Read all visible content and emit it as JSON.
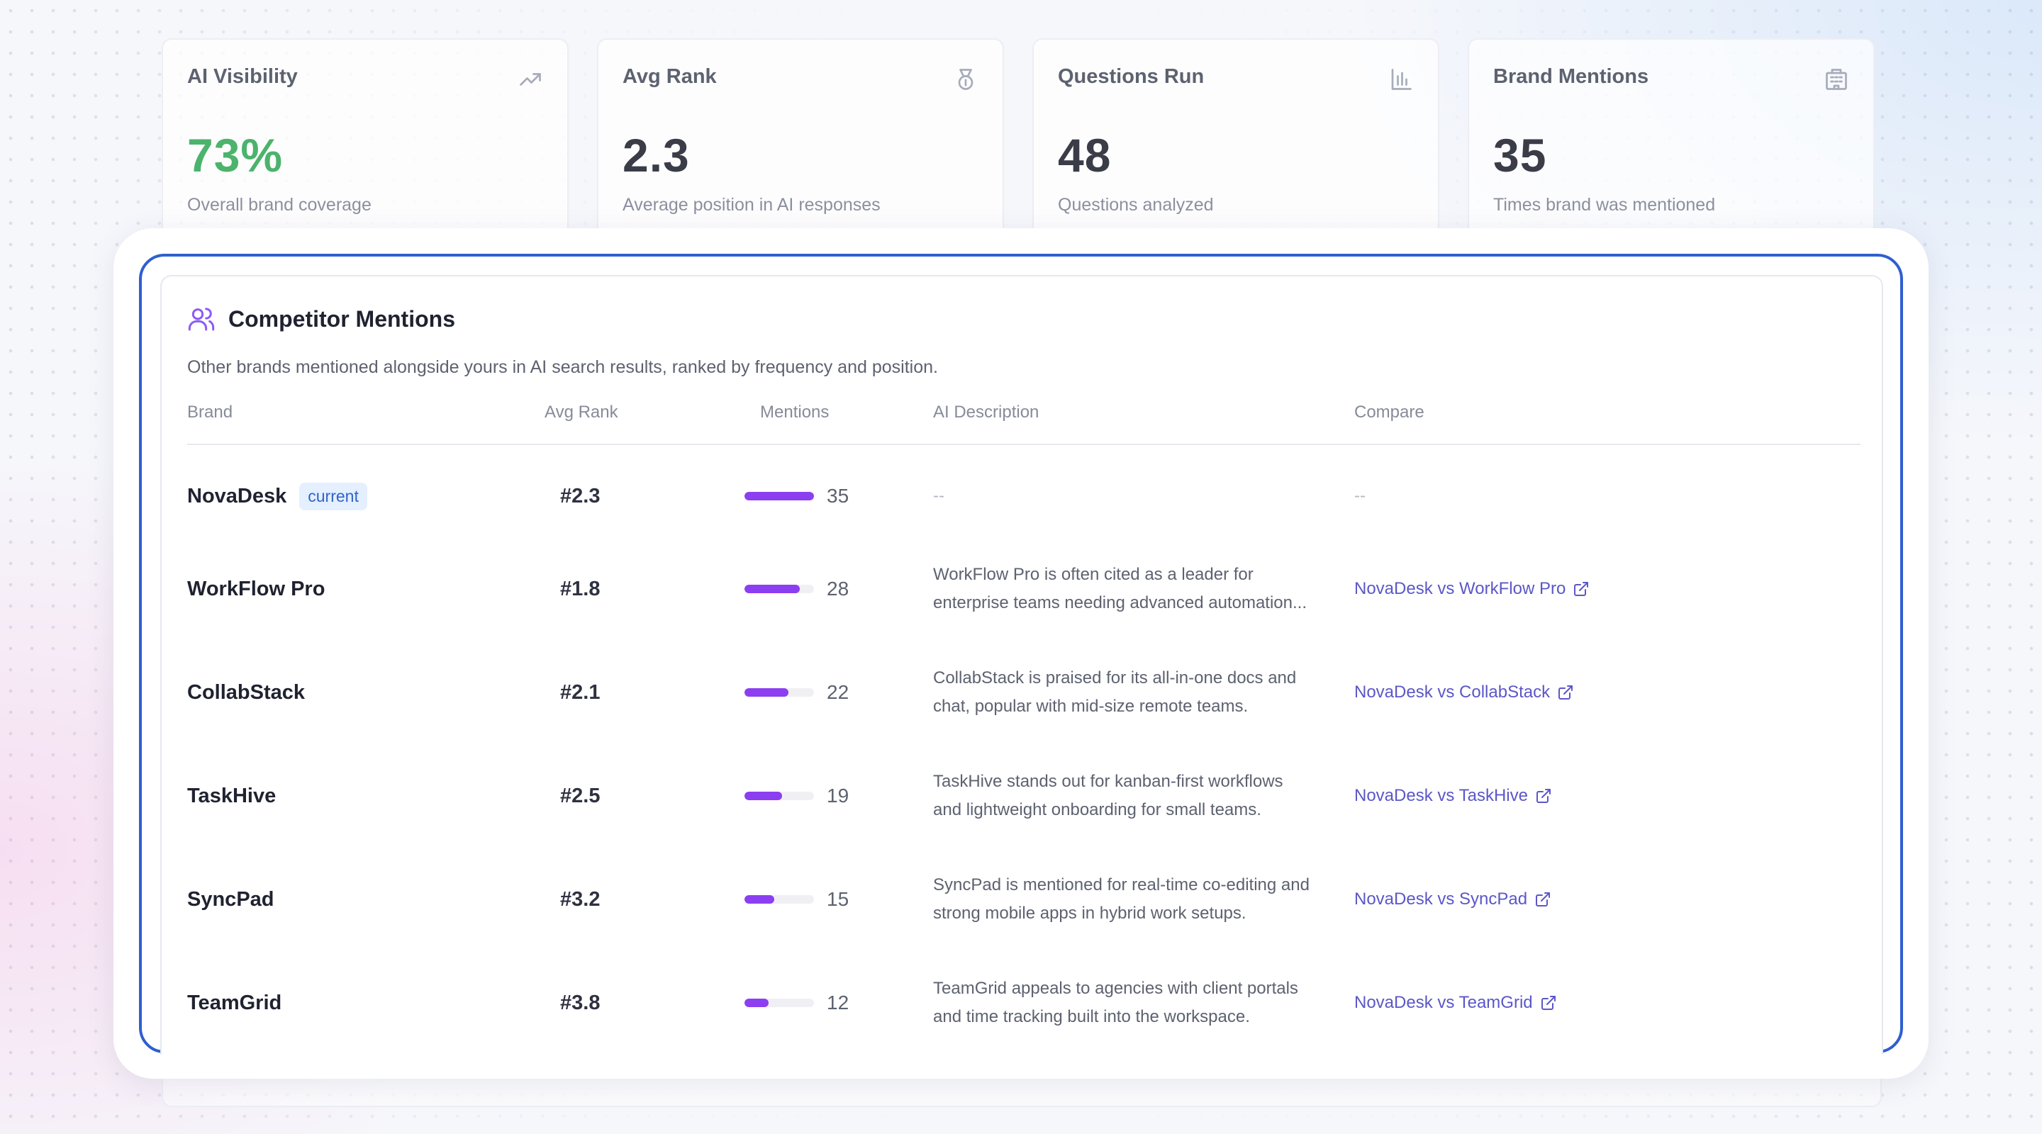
{
  "stats": [
    {
      "title": "AI Visibility",
      "value": "73%",
      "subtitle": "Overall brand coverage",
      "icon": "trending-up-icon",
      "accent_color": "#4cb36c"
    },
    {
      "title": "Avg Rank",
      "value": "2.3",
      "subtitle": "Average position in AI responses",
      "icon": "medal-icon"
    },
    {
      "title": "Questions Run",
      "value": "48",
      "subtitle": "Questions analyzed",
      "icon": "bar-chart-icon"
    },
    {
      "title": "Brand Mentions",
      "value": "35",
      "subtitle": "Times brand was mentioned",
      "icon": "building-icon"
    }
  ],
  "competitors": {
    "title": "Competitor Mentions",
    "icon": "users-icon",
    "description": "Other brands mentioned alongside yours in AI search results, ranked by frequency and position.",
    "columns": {
      "brand": "Brand",
      "avg_rank": "Avg Rank",
      "mentions": "Mentions",
      "ai_description": "AI Description",
      "compare": "Compare"
    },
    "current_badge": "current",
    "bar_color": "#8b3ff0",
    "link_color": "#5b57c8",
    "rows": [
      {
        "brand": "NovaDesk",
        "current": true,
        "rank": "#2.3",
        "mentions": "35",
        "mentions_value": 35,
        "desc_line1": "--",
        "desc_line2": "",
        "compare": "--"
      },
      {
        "brand": "WorkFlow Pro",
        "current": false,
        "rank": "#1.8",
        "mentions": "28",
        "mentions_value": 28,
        "desc_line1": "WorkFlow Pro is often cited as a leader for",
        "desc_line2": "enterprise teams needing advanced automation...",
        "compare": "NovaDesk vs WorkFlow Pro"
      },
      {
        "brand": "CollabStack",
        "current": false,
        "rank": "#2.1",
        "mentions": "22",
        "mentions_value": 22,
        "desc_line1": "CollabStack is praised for its all-in-one docs and",
        "desc_line2": "chat, popular with mid-size remote teams.",
        "compare": "NovaDesk vs CollabStack"
      },
      {
        "brand": "TaskHive",
        "current": false,
        "rank": "#2.5",
        "mentions": "19",
        "mentions_value": 19,
        "desc_line1": "TaskHive stands out for kanban-first workflows",
        "desc_line2": "and lightweight onboarding for small teams.",
        "compare": "NovaDesk vs TaskHive"
      },
      {
        "brand": "SyncPad",
        "current": false,
        "rank": "#3.2",
        "mentions": "15",
        "mentions_value": 15,
        "desc_line1": "SyncPad is mentioned for real-time co-editing and",
        "desc_line2": "strong mobile apps in hybrid work setups.",
        "compare": "NovaDesk vs SyncPad"
      },
      {
        "brand": "TeamGrid",
        "current": false,
        "rank": "#3.8",
        "mentions": "12",
        "mentions_value": 12,
        "desc_line1": "TeamGrid appeals to agencies with client portals",
        "desc_line2": "and time tracking built into the workspace.",
        "compare": "NovaDesk vs TeamGrid"
      }
    ]
  }
}
